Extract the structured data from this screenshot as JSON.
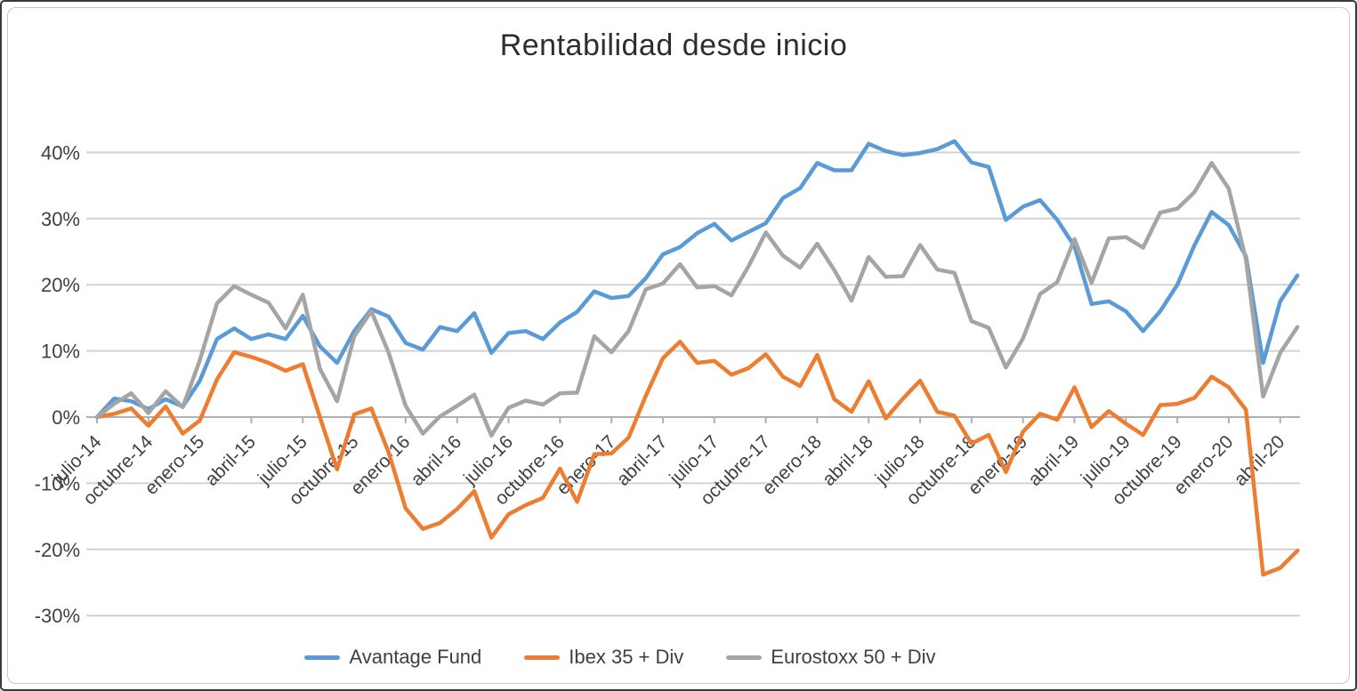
{
  "chart_data": {
    "type": "line",
    "title": "Rentabilidad desde inicio",
    "grid": true,
    "legend_position": "bottom",
    "background": "#ffffff",
    "gridline_color": "#d2d2d2",
    "axis_color": "#b0b0b0",
    "label_color": "#404040",
    "ylim": [
      -30,
      45
    ],
    "y_tick_values": [
      40,
      30,
      20,
      10,
      0,
      -10,
      -20,
      -30
    ],
    "y_tick_labels": [
      "40%",
      "30%",
      "20%",
      "10%",
      "0%",
      "-10%",
      "-20%",
      "-30%"
    ],
    "x_tick_every": 3,
    "x_axis_tick_labels": [
      "julio-14",
      "octubre-14",
      "enero-15",
      "abril-15",
      "julio-15",
      "octubre-15",
      "enero-16",
      "abril-16",
      "julio-16",
      "octubre-16",
      "enero-17",
      "abril-17",
      "julio-17",
      "octubre-17",
      "enero-18",
      "abril-18",
      "julio-18",
      "octubre-18",
      "enero-19",
      "abril-19",
      "julio-19",
      "octubre-19",
      "enero-20",
      "abril-20"
    ],
    "x": [
      "julio-14",
      "agosto-14",
      "septiembre-14",
      "octubre-14",
      "noviembre-14",
      "diciembre-14",
      "enero-15",
      "febrero-15",
      "marzo-15",
      "abril-15",
      "mayo-15",
      "junio-15",
      "julio-15",
      "agosto-15",
      "septiembre-15",
      "octubre-15",
      "noviembre-15",
      "diciembre-15",
      "enero-16",
      "febrero-16",
      "marzo-16",
      "abril-16",
      "mayo-16",
      "junio-16",
      "julio-16",
      "agosto-16",
      "septiembre-16",
      "octubre-16",
      "noviembre-16",
      "diciembre-16",
      "enero-17",
      "febrero-17",
      "marzo-17",
      "abril-17",
      "mayo-17",
      "junio-17",
      "julio-17",
      "agosto-17",
      "septiembre-17",
      "octubre-17",
      "noviembre-17",
      "diciembre-17",
      "enero-18",
      "febrero-18",
      "marzo-18",
      "abril-18",
      "mayo-18",
      "junio-18",
      "julio-18",
      "agosto-18",
      "septiembre-18",
      "octubre-18",
      "noviembre-18",
      "diciembre-18",
      "enero-19",
      "febrero-19",
      "marzo-19",
      "abril-19",
      "mayo-19",
      "junio-19",
      "julio-19",
      "agosto-19",
      "septiembre-19",
      "octubre-19",
      "noviembre-19",
      "diciembre-19",
      "enero-20",
      "febrero-20",
      "marzo-20",
      "abril-20",
      "mayo-20"
    ],
    "series": [
      {
        "name": "Avantage Fund",
        "color": "#5b9bd5",
        "values": [
          0,
          2.8,
          2.4,
          1.2,
          2.7,
          1.6,
          5.5,
          11.8,
          13.4,
          11.8,
          12.5,
          11.8,
          15.3,
          10.7,
          8.2,
          13.0,
          16.3,
          15.2,
          11.2,
          10.2,
          13.6,
          13.0,
          15.7,
          9.7,
          12.7,
          13.0,
          11.8,
          14.3,
          15.9,
          19.0,
          18.0,
          18.3,
          21.0,
          24.6,
          25.7,
          27.8,
          29.2,
          26.7,
          28.0,
          29.3,
          33.1,
          34.6,
          38.4,
          37.3,
          37.3,
          41.3,
          40.2,
          39.6,
          39.9,
          40.5,
          41.7,
          38.5,
          37.8,
          29.8,
          31.8,
          32.8,
          29.8,
          25.8,
          17.1,
          17.5,
          16.0,
          13.0,
          16.0,
          20.0,
          26.0,
          31.0,
          29.0,
          24.3,
          8.2,
          17.5,
          21.4
        ]
      },
      {
        "name": "Ibex 35 + Div",
        "color": "#ed7d31",
        "values": [
          0,
          0.5,
          1.3,
          -1.3,
          1.6,
          -2.5,
          -0.5,
          5.7,
          9.8,
          9.1,
          8.2,
          7.0,
          8.0,
          0.0,
          -7.9,
          0.4,
          1.3,
          -5.3,
          -13.8,
          -16.9,
          -16.0,
          -13.9,
          -11.2,
          -18.2,
          -14.7,
          -13.3,
          -12.2,
          -7.8,
          -12.8,
          -5.6,
          -5.5,
          -3.1,
          3.2,
          8.9,
          11.4,
          8.2,
          8.5,
          6.4,
          7.4,
          9.5,
          6.1,
          4.7,
          9.4,
          2.7,
          0.8,
          5.4,
          -0.2,
          2.8,
          5.5,
          0.8,
          0.2,
          -4.0,
          -2.7,
          -8.3,
          -2.2,
          0.5,
          -0.4,
          4.5,
          -1.5,
          0.9,
          -1.0,
          -2.7,
          1.8,
          2.0,
          2.9,
          6.1,
          4.5,
          1.1,
          -23.8,
          -22.8,
          -20.2
        ]
      },
      {
        "name": "Eurostoxx 50 + Div",
        "color": "#a5a5a5",
        "values": [
          0,
          2.0,
          3.6,
          0.6,
          3.9,
          1.5,
          8.6,
          17.2,
          19.8,
          18.5,
          17.3,
          13.4,
          18.5,
          7.3,
          2.4,
          12.2,
          16.0,
          9.8,
          1.7,
          -2.5,
          0.1,
          1.7,
          3.4,
          -2.8,
          1.4,
          2.5,
          1.9,
          3.6,
          3.7,
          12.2,
          9.8,
          13.0,
          19.3,
          20.2,
          23.1,
          19.6,
          19.8,
          18.4,
          22.8,
          27.9,
          24.4,
          22.6,
          26.2,
          22.2,
          17.6,
          24.2,
          21.2,
          21.3,
          26.0,
          22.3,
          21.8,
          14.5,
          13.5,
          7.5,
          11.9,
          18.6,
          20.4,
          26.9,
          20.3,
          27.0,
          27.2,
          25.6,
          30.9,
          31.5,
          34.0,
          38.4,
          34.5,
          23.8,
          3.1,
          9.7,
          13.6
        ]
      }
    ]
  }
}
